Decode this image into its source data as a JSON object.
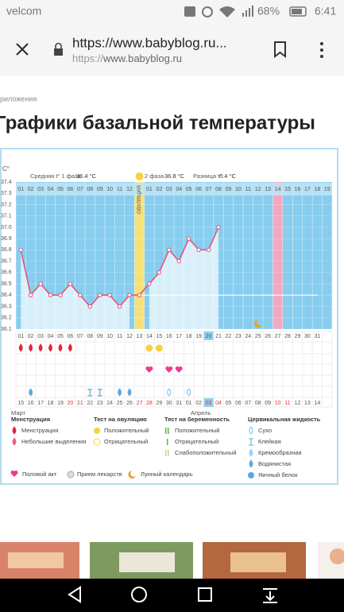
{
  "status_bar": {
    "carrier": "velcom",
    "battery": "68%",
    "time": "6:41"
  },
  "address_bar": {
    "title": "https://www.babyblog.ru...",
    "scheme": "https://",
    "host": "www.babyblog.ru"
  },
  "breadcrumb": "риложения",
  "heading": "Графики базальной температуры",
  "chart_data": {
    "type": "line",
    "y_unit": "C°",
    "phase1_label": "Средняя t° 1 фаза",
    "phase1_avg": 36.4,
    "phase1_avg_label": "36.4 °C",
    "phase2_label": "2 фаза",
    "phase2_avg_label": "36.8 °C",
    "diff_label": "Разница t°",
    "diff_value_label": "0.4 °C",
    "categories": [
      "01",
      "02",
      "03",
      "04",
      "05",
      "06",
      "07",
      "08",
      "09",
      "10",
      "11",
      "12",
      "ОВУЛЯЦИЯ",
      "01",
      "02",
      "03",
      "04",
      "05",
      "06",
      "07",
      "08",
      "09",
      "10",
      "11",
      "12",
      "13",
      "14",
      "15",
      "16",
      "17",
      "18",
      "19"
    ],
    "values": [
      36.8,
      36.4,
      36.5,
      36.4,
      36.4,
      36.5,
      36.4,
      36.3,
      36.4,
      36.4,
      36.3,
      36.4,
      36.4,
      36.5,
      36.6,
      36.8,
      36.7,
      36.9,
      36.8,
      36.8,
      37.0,
      null,
      null,
      null,
      null,
      null,
      null,
      null,
      null,
      null,
      null,
      null
    ],
    "color": "#e2557a",
    "ylim": [
      36.1,
      37.4
    ],
    "yticks": [
      36.1,
      36.2,
      36.3,
      36.4,
      36.5,
      36.6,
      36.7,
      36.8,
      36.9,
      {
        "value": 37,
        "label": "37.0"
      },
      37.1,
      37.2,
      37.3,
      37.4
    ],
    "grid": true,
    "dates_top": [
      "01",
      "02",
      "03",
      "04",
      "05",
      "06",
      "07",
      "08",
      "09",
      "10",
      "11",
      "12",
      "13",
      "14",
      "15",
      "16",
      "17",
      "18",
      "19",
      "20",
      "21",
      "22",
      "23",
      "24",
      "25",
      "26",
      "27",
      "28",
      "29",
      "30",
      "31"
    ],
    "dates_bottom": [
      "15",
      "16",
      "17",
      "18",
      "19",
      "20",
      "21",
      "22",
      "23",
      "24",
      "25",
      "26",
      "27",
      "28",
      "29",
      "30",
      "31",
      "01",
      "02",
      "03",
      "04",
      "05",
      "06",
      "07",
      "08",
      "09",
      "10",
      "11",
      "12",
      "13",
      "14"
    ],
    "months": [
      "Март",
      "Апрель"
    ]
  },
  "legend": {
    "menstruation": {
      "title": "Менструация",
      "items": [
        "Менструация",
        "Небольшие выделения"
      ]
    },
    "ovulation_test": {
      "title": "Тест на овуляцию",
      "items": [
        "Положительный",
        "Отрицательный"
      ]
    },
    "pregnancy_test": {
      "title": "Тест на беременность",
      "items": [
        "Положительный",
        "Отрицательный",
        "Слабоположительный"
      ]
    },
    "cervical": {
      "title": "Цервикальная жидкость",
      "items": [
        "Сухо",
        "Клейкая",
        "Кремообразная",
        "Водянистая",
        "Яичный белок"
      ]
    },
    "extra": [
      "Половой акт",
      "Прием лекарств",
      "Лунный календарь"
    ]
  }
}
